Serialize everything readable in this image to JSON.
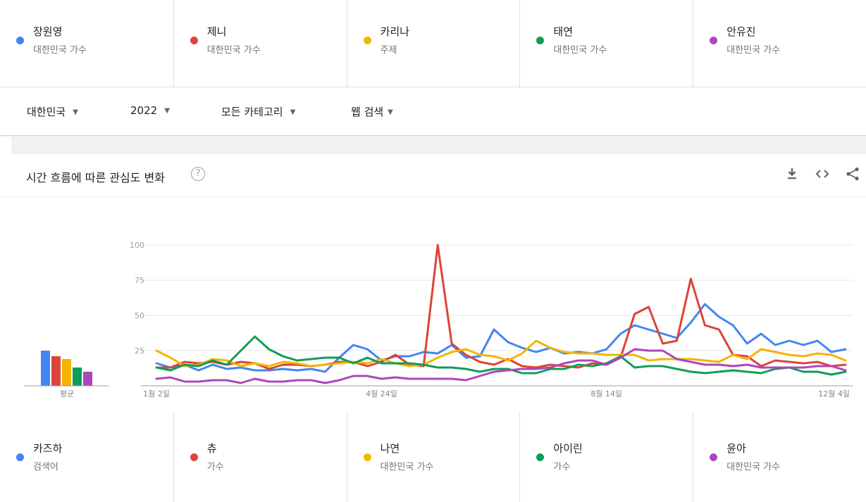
{
  "terms_top": [
    {
      "name": "장원영",
      "sub": "대한민국 가수",
      "color": "#4285f4"
    },
    {
      "name": "제니",
      "sub": "대한민국 가수",
      "color": "#db4437"
    },
    {
      "name": "카리나",
      "sub": "주제",
      "color": "#f4b400"
    },
    {
      "name": "태연",
      "sub": "대한민국 가수",
      "color": "#0f9d58"
    },
    {
      "name": "안유진",
      "sub": "대한민국 가수",
      "color": "#ab47bc"
    }
  ],
  "terms_bottom": [
    {
      "name": "카즈하",
      "sub": "검색어",
      "color": "#4285f4"
    },
    {
      "name": "츄",
      "sub": "가수",
      "color": "#db4437"
    },
    {
      "name": "나연",
      "sub": "대한민국 가수",
      "color": "#f4b400"
    },
    {
      "name": "아이린",
      "sub": "가수",
      "color": "#0f9d58"
    },
    {
      "name": "윤아",
      "sub": "대한민국 가수",
      "color": "#ab47bc"
    }
  ],
  "filters": {
    "region": "대한민국",
    "year": "2022",
    "category": "모든 카테고리",
    "search_type": "웹 검색"
  },
  "card": {
    "title": "시간 흐름에 따른 관심도 변화",
    "help": "?"
  },
  "chart_data": {
    "type": "line",
    "title": "시간 흐름에 따른 관심도 변화",
    "ylim": [
      0,
      100
    ],
    "yticks": [
      25,
      50,
      75,
      100
    ],
    "x_labels": [
      "1월 2일",
      "4월 24일",
      "8월 14일",
      "12월 4일"
    ],
    "grid": true,
    "average_label": "평균",
    "average_values": [
      25,
      21,
      19,
      13,
      10
    ],
    "series": [
      {
        "name": "카즈하",
        "color": "#4285f4",
        "values": [
          16,
          13,
          15,
          11,
          15,
          12,
          13,
          11,
          11,
          12,
          11,
          12,
          10,
          20,
          29,
          26,
          18,
          21,
          21,
          24,
          23,
          29,
          20,
          21,
          40,
          31,
          27,
          24,
          27,
          23,
          24,
          23,
          26,
          37,
          43,
          40,
          37,
          34,
          45,
          58,
          49,
          43,
          30,
          37,
          29,
          32,
          29,
          32,
          24,
          26
        ]
      },
      {
        "name": "츄",
        "color": "#db4437",
        "values": [
          13,
          13,
          17,
          16,
          17,
          15,
          17,
          16,
          12,
          15,
          15,
          14,
          15,
          17,
          17,
          14,
          17,
          22,
          15,
          14,
          100,
          30,
          22,
          17,
          15,
          19,
          14,
          13,
          15,
          14,
          13,
          16,
          15,
          20,
          51,
          56,
          30,
          32,
          76,
          43,
          40,
          22,
          21,
          14,
          18,
          17,
          16,
          17,
          14,
          15
        ]
      },
      {
        "name": "나연",
        "color": "#f4b400",
        "values": [
          25,
          20,
          14,
          15,
          19,
          18,
          14,
          16,
          14,
          17,
          16,
          14,
          15,
          16,
          17,
          16,
          19,
          16,
          14,
          15,
          20,
          24,
          26,
          22,
          21,
          18,
          23,
          32,
          27,
          24,
          23,
          23,
          22,
          22,
          22,
          18,
          19,
          19,
          19,
          18,
          17,
          22,
          19,
          26,
          24,
          22,
          21,
          23,
          22,
          18
        ]
      },
      {
        "name": "아이린",
        "color": "#0f9d58",
        "values": [
          13,
          11,
          15,
          14,
          18,
          15,
          25,
          35,
          26,
          21,
          18,
          19,
          20,
          20,
          16,
          20,
          16,
          16,
          16,
          15,
          13,
          13,
          12,
          10,
          12,
          12,
          9,
          9,
          12,
          12,
          15,
          14,
          16,
          21,
          13,
          14,
          14,
          12,
          10,
          9,
          10,
          11,
          10,
          9,
          12,
          13,
          10,
          10,
          8,
          10
        ]
      },
      {
        "name": "윤아",
        "color": "#ab47bc",
        "values": [
          5,
          6,
          3,
          3,
          4,
          4,
          2,
          5,
          3,
          3,
          4,
          4,
          2,
          4,
          7,
          7,
          5,
          6,
          5,
          5,
          5,
          5,
          4,
          7,
          10,
          11,
          12,
          12,
          13,
          16,
          18,
          18,
          15,
          20,
          26,
          25,
          25,
          19,
          17,
          15,
          15,
          14,
          15,
          13,
          13,
          13,
          13,
          14,
          14,
          11
        ]
      }
    ]
  }
}
